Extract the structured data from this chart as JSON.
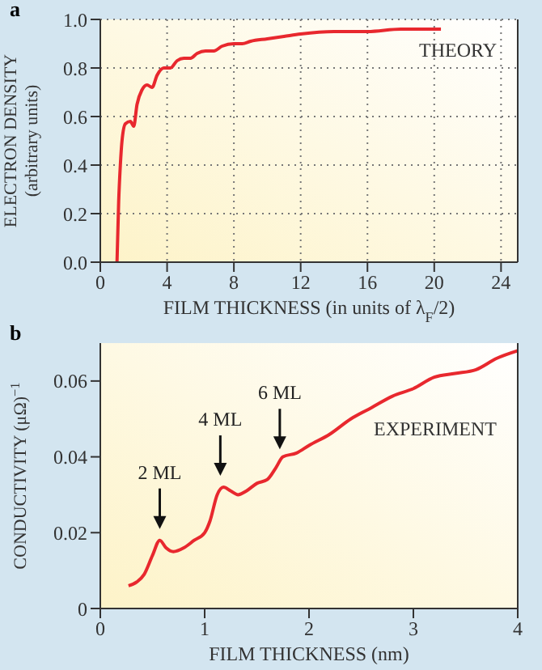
{
  "chart_data": [
    {
      "type": "line",
      "title": "a",
      "xlabel": "FILM THICKNESS (in units of λ$_{F}$/2)",
      "ylabel": "ELECTRON DENSITY\n(arbitrary units)",
      "annotations": [
        "THEORY"
      ],
      "xlim": [
        0,
        25
      ],
      "xticks": [
        0,
        4,
        8,
        12,
        16,
        20,
        24
      ],
      "ylim": [
        0,
        1
      ],
      "yticks": [
        {
          "value": 0,
          "label": "0.0"
        },
        0.2,
        0.4,
        0.6,
        0.8,
        {
          "value": 1,
          "label": "1.0"
        }
      ],
      "grid": true,
      "marker": "none",
      "line_style": "solid",
      "series": [
        {
          "color": "#e8282e",
          "x": [
            1.0,
            1.1,
            1.2,
            1.3,
            1.5,
            1.8,
            2.0,
            2.2,
            2.5,
            2.8,
            3.1,
            3.4,
            3.8,
            4.2,
            4.6,
            5.0,
            5.4,
            5.8,
            6.3,
            6.8,
            7.3,
            8.0,
            8.5,
            9.0,
            10,
            11,
            12,
            14,
            16,
            18,
            20.4
          ],
          "values": [
            0,
            0.25,
            0.4,
            0.5,
            0.57,
            0.58,
            0.56,
            0.65,
            0.71,
            0.73,
            0.72,
            0.77,
            0.8,
            0.8,
            0.83,
            0.84,
            0.84,
            0.86,
            0.87,
            0.87,
            0.89,
            0.9,
            0.9,
            0.91,
            0.92,
            0.93,
            0.94,
            0.95,
            0.95,
            0.96,
            0.96
          ]
        }
      ]
    },
    {
      "type": "line",
      "title": "b",
      "xlabel": "FILM THICKNESS (nm)",
      "ylabel": "CONDUCTIVITY (μΩ)$^{−1}$",
      "annotations": [
        {
          "text": "2 ML",
          "x": 0.57,
          "y": 0.018
        },
        {
          "text": "4 ML",
          "x": 1.15,
          "y": 0.032
        },
        {
          "text": "6 ML",
          "x": 1.72,
          "y": 0.039
        },
        "EXPERIMENT"
      ],
      "xlim": [
        0,
        4
      ],
      "xticks": [
        0,
        1,
        2,
        3,
        4
      ],
      "ylim": [
        0,
        0.07
      ],
      "yticks": [
        0,
        0.02,
        0.04,
        0.06
      ],
      "grid": false,
      "marker": "none",
      "line_style": "solid",
      "series": [
        {
          "color": "#e8282e",
          "x": [
            0.27,
            0.35,
            0.42,
            0.5,
            0.57,
            0.63,
            0.7,
            0.8,
            0.9,
            1.0,
            1.05,
            1.12,
            1.18,
            1.25,
            1.32,
            1.4,
            1.5,
            1.6,
            1.68,
            1.75,
            1.88,
            2.0,
            2.2,
            2.4,
            2.6,
            2.8,
            3.0,
            3.2,
            3.4,
            3.6,
            3.8,
            4.0
          ],
          "values": [
            0.006,
            0.007,
            0.009,
            0.014,
            0.018,
            0.016,
            0.015,
            0.016,
            0.018,
            0.02,
            0.023,
            0.03,
            0.032,
            0.031,
            0.03,
            0.031,
            0.033,
            0.034,
            0.037,
            0.04,
            0.041,
            0.043,
            0.046,
            0.05,
            0.053,
            0.056,
            0.058,
            0.061,
            0.062,
            0.063,
            0.066,
            0.068
          ]
        }
      ]
    }
  ]
}
